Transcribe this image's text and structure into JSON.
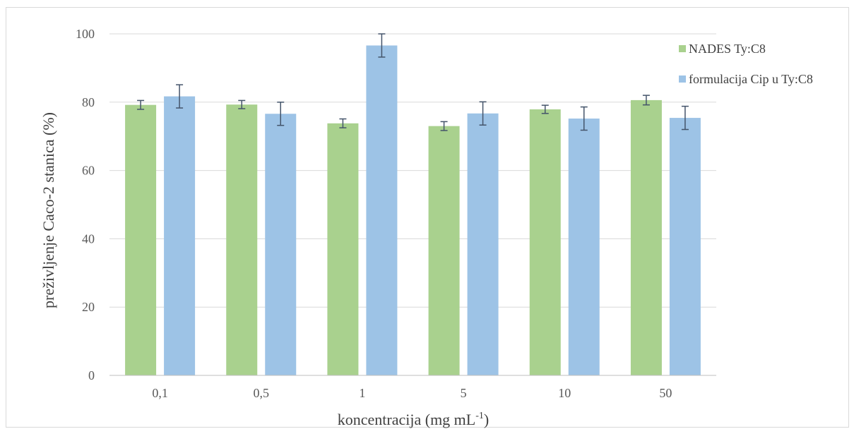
{
  "chart_data": {
    "type": "bar",
    "categories": [
      "0,1",
      "0,5",
      "1",
      "5",
      "10",
      "50"
    ],
    "series": [
      {
        "name": "NADES Ty:C8",
        "color": "#a9d18e",
        "values": [
          79.2,
          79.3,
          73.8,
          73.0,
          77.9,
          80.6
        ],
        "errors": [
          1.3,
          1.2,
          1.3,
          1.3,
          1.2,
          1.4
        ]
      },
      {
        "name": "formulacija Cip u Ty:C8",
        "color": "#9dc3e6",
        "values": [
          81.7,
          76.6,
          96.6,
          76.7,
          75.2,
          75.4
        ],
        "errors": [
          3.4,
          3.4,
          3.4,
          3.4,
          3.4,
          3.4
        ]
      }
    ],
    "ylabel": "preživljenje Caco-2 stanica (%)",
    "xlabel_main": "koncentracija (mg mL",
    "xlabel_sup": "-1",
    "xlabel_end": ")",
    "ylim": [
      0,
      100
    ],
    "yticks": [
      "0",
      "20",
      "40",
      "60",
      "80",
      "100"
    ],
    "grid": true,
    "legend_position": "top-right",
    "error_bar_color": "#44546a",
    "gridline_color": "#d9d9d9"
  }
}
